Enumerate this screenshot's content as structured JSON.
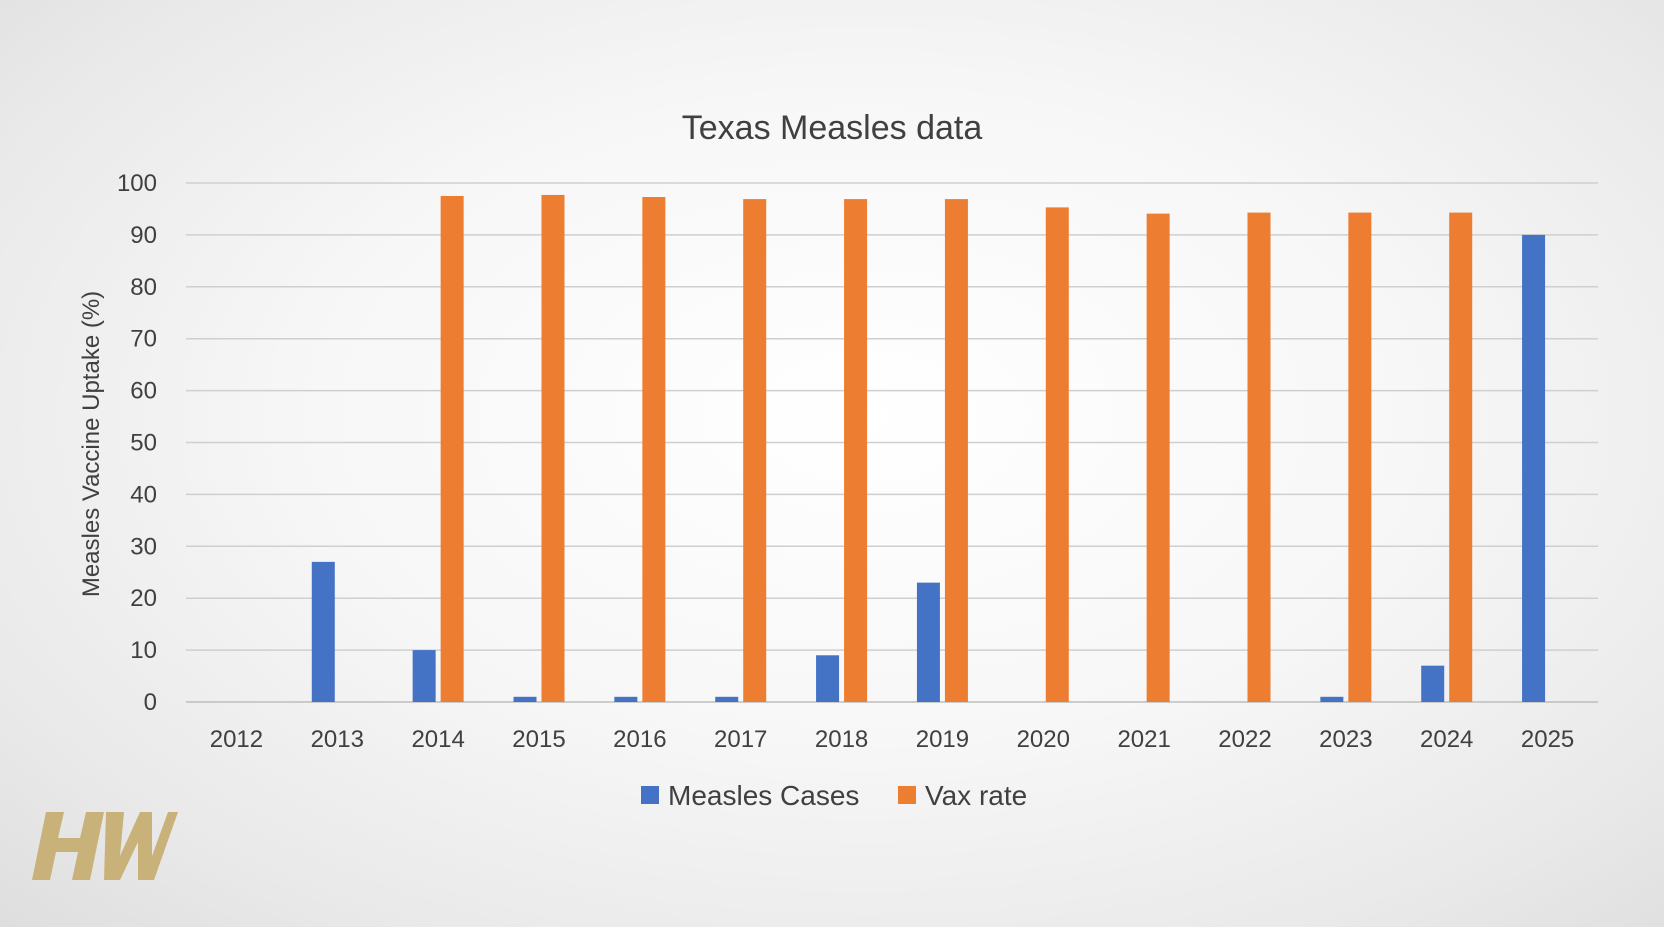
{
  "chart_data": {
    "type": "bar",
    "title": "Texas Measles data",
    "xlabel": "",
    "ylabel": "Measles Vaccine Uptake (%)",
    "ylim": [
      0,
      100
    ],
    "yticks": [
      0,
      10,
      20,
      30,
      40,
      50,
      60,
      70,
      80,
      90,
      100
    ],
    "categories": [
      "2012",
      "2013",
      "2014",
      "2015",
      "2016",
      "2017",
      "2018",
      "2019",
      "2020",
      "2021",
      "2022",
      "2023",
      "2024",
      "2025"
    ],
    "series": [
      {
        "name": "Measles Cases",
        "color": "#4472c4",
        "values": [
          0,
          27,
          10,
          1,
          1,
          1,
          9,
          23,
          0,
          0,
          0,
          1,
          7,
          90
        ]
      },
      {
        "name": "Vax rate",
        "color": "#ed7d31",
        "values": [
          null,
          null,
          97.5,
          97.7,
          97.3,
          96.9,
          96.9,
          96.9,
          95.3,
          94.1,
          94.3,
          94.3,
          94.3,
          null
        ]
      }
    ],
    "grid": true,
    "legend_position": "bottom"
  },
  "logo": {
    "text": "HW",
    "color": "#c9b27a"
  }
}
